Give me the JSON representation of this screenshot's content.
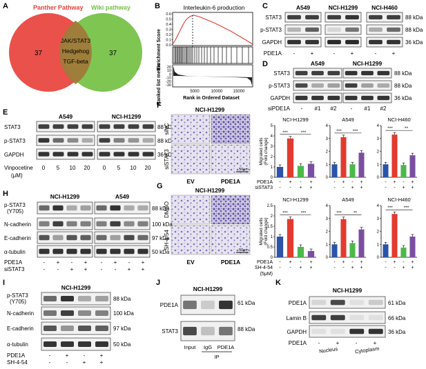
{
  "panelA": {
    "letter": "A",
    "left": "Panther Pathway",
    "right": "Wiki pathway",
    "left_count": "37",
    "right_count": "37",
    "shared": [
      "JAK/STAT3",
      "Hedgehog",
      "TGF-beta"
    ],
    "left_color": "#e8423c",
    "right_color": "#74c043"
  },
  "panelB": {
    "letter": "B",
    "title": "Interleukin-6 production",
    "ylabel_top": "Enrichment Score",
    "ylabel_bottom": "Ranked list metric",
    "xlabel": "Rank in Ordered Dataset",
    "y_ticks_top": [
      "0.6",
      "0.5",
      "0.4",
      "0.3",
      "0.2",
      "0.1",
      "0.0"
    ],
    "y_ticks_bottom": [
      "20",
      "10",
      "0",
      "-10",
      "-20",
      "-30"
    ],
    "x_ticks": [
      "5000",
      "10000",
      "15000"
    ]
  },
  "panelC": {
    "letter": "C",
    "cells": [
      "A549",
      "NCI-H1299",
      "NCI-H460"
    ],
    "rows": [
      "STAT3",
      "p-STAT3",
      "GAPDH"
    ],
    "kda": [
      "88 kDa",
      "88 kDa",
      "36 kDa"
    ],
    "cond": "PDE1A",
    "signs": [
      "-",
      "+",
      "-",
      "+",
      "-",
      "+"
    ]
  },
  "panelD": {
    "letter": "D",
    "cells": [
      "A549",
      "NCI-H1299"
    ],
    "rows": [
      "STAT3",
      "p-STAT3",
      "GAPDH"
    ],
    "kda": [
      "88 kDa",
      "88 kDa",
      "36 kDa"
    ],
    "cond": "siPDE1A",
    "signs": [
      "-",
      "#1",
      "#2",
      "-",
      "#1",
      "#2"
    ]
  },
  "panelE": {
    "letter": "E",
    "cells": [
      "A549",
      "NCI-H1299"
    ],
    "rows": [
      "STAT3",
      "p-STAT3",
      "GAPDH"
    ],
    "kda": [
      "88 kDa",
      "88 kDa",
      "36 kDa"
    ],
    "cond": "Vinpocetine",
    "unit": "(μM)",
    "doses": [
      "0",
      "5",
      "10",
      "20",
      "0",
      "5",
      "10",
      "20"
    ]
  },
  "panelF": {
    "letter": "F",
    "cell": "NCI-H1299",
    "row_labels": [
      "siNC",
      "siSTAT3"
    ],
    "col_labels": [
      "EV",
      "PDE1A"
    ],
    "scale": "50μm",
    "cond1": "PDE1A",
    "cond2": "siSTAT3",
    "sig": [
      "***",
      "***",
      "***"
    ]
  },
  "panelG": {
    "letter": "G",
    "cell": "NCI-H1299",
    "row_labels": [
      "DMSO",
      "SH-4-54"
    ],
    "col_labels": [
      "EV",
      "PDE1A"
    ],
    "scale": "50μm",
    "cond1": "PDE1A",
    "cond2": "SH-4-54",
    "dose": "(5μM)"
  },
  "bars_ylabel": "Migrated cells",
  "bars_ylabel2": "(Fold change)",
  "chart_data": [
    {
      "type": "bar",
      "title": "NCI-H1299",
      "ylabel": "Migrated cells (Fold change)",
      "ylim": [
        0,
        5
      ],
      "y_ticks": [
        0,
        1,
        2,
        3,
        4,
        5
      ],
      "categories": [
        "EV",
        "PDE1A",
        "siSTAT3",
        "PDE1A+siSTAT3"
      ],
      "values": [
        1.0,
        3.75,
        1.1,
        1.3
      ],
      "sig": [
        "***",
        "***"
      ]
    },
    {
      "type": "bar",
      "title": "A549",
      "ylim": [
        0,
        4
      ],
      "y_ticks": [
        0,
        1,
        2,
        3,
        4
      ],
      "categories": [
        "EV",
        "PDE1A",
        "siSTAT3",
        "PDE1A+siSTAT3"
      ],
      "values": [
        1.0,
        3.1,
        1.0,
        1.9
      ],
      "sig": [
        "***",
        "***"
      ]
    },
    {
      "type": "bar",
      "title": "NCI-H460",
      "ylim": [
        0,
        4
      ],
      "y_ticks": [
        0,
        1,
        2,
        3,
        4
      ],
      "categories": [
        "EV",
        "PDE1A",
        "siSTAT3",
        "PDE1A+siSTAT3"
      ],
      "values": [
        1.0,
        3.3,
        0.95,
        1.7
      ],
      "sig": [
        "***",
        "**"
      ]
    },
    {
      "type": "bar",
      "title": "NCI-H1299",
      "ylabel": "Migrated cells (Fold change)",
      "ylim": [
        0,
        2.5
      ],
      "y_ticks": [
        0.0,
        0.5,
        1.0,
        1.5,
        2.0,
        2.5
      ],
      "categories": [
        "EV",
        "PDE1A",
        "SH-4-54",
        "PDE1A+SH-4-54"
      ],
      "values": [
        1.0,
        1.85,
        0.5,
        0.3
      ],
      "sig": [
        "***",
        "***"
      ]
    },
    {
      "type": "bar",
      "title": "A549",
      "ylim": [
        0,
        4
      ],
      "y_ticks": [
        0,
        1,
        2,
        3,
        4
      ],
      "categories": [
        "EV",
        "PDE1A",
        "SH-4-54",
        "PDE1A+SH-4-54"
      ],
      "values": [
        1.0,
        2.95,
        1.1,
        2.15
      ],
      "sig": [
        "***",
        "**"
      ]
    },
    {
      "type": "bar",
      "title": "NCI-H460",
      "ylim": [
        0,
        4
      ],
      "y_ticks": [
        0,
        1,
        2,
        3,
        4
      ],
      "categories": [
        "EV",
        "PDE1A",
        "SH-4-54",
        "PDE1A+SH-4-54"
      ],
      "values": [
        1.0,
        3.35,
        0.75,
        1.6
      ],
      "sig": [
        "***",
        "***"
      ]
    }
  ],
  "bar_colors": [
    "#2b53a8",
    "#e23a2e",
    "#4cb84a",
    "#7a4fa0"
  ],
  "panelH": {
    "letter": "H",
    "cells": [
      "NCI-H1299",
      "A549"
    ],
    "rows": [
      "p-STAT3\n(Y705)",
      "N-cadherin",
      "E-cadherin",
      "α-tubulin"
    ],
    "kda": [
      "88 kDa",
      "100 kDa",
      "97 kDa",
      "50 kDa"
    ],
    "cond1": "PDE1A",
    "cond2": "siSTAT3"
  },
  "panelI": {
    "letter": "I",
    "cell": "NCI-H1299",
    "rows": [
      "p-STAT3\n(Y705)",
      "N-cadherin",
      "E-cadherin",
      "α-tubulin"
    ],
    "kda": [
      "88 kDa",
      "100 kDa",
      "97 kDa",
      "50 kDa"
    ],
    "cond1": "PDE1A",
    "cond2": "SH-4-54"
  },
  "panelJ": {
    "letter": "J",
    "cell": "NCI-H1299",
    "rows": [
      "PDE1A",
      "STAT3"
    ],
    "kda": [
      "61 kDa",
      "88 kDa"
    ],
    "lanes": [
      "Input",
      "IgG",
      "PDE1A"
    ],
    "ip": "IP"
  },
  "panelK": {
    "letter": "K",
    "cell": "NCI-H1299",
    "rows": [
      "PDE1A",
      "Lamin B",
      "GAPDH"
    ],
    "kda": [
      "61 kDa",
      "66 kDa",
      "36 kDa"
    ],
    "cond": "PDE1A",
    "fractions": [
      "Nucleus",
      "Cytoplasm"
    ]
  }
}
